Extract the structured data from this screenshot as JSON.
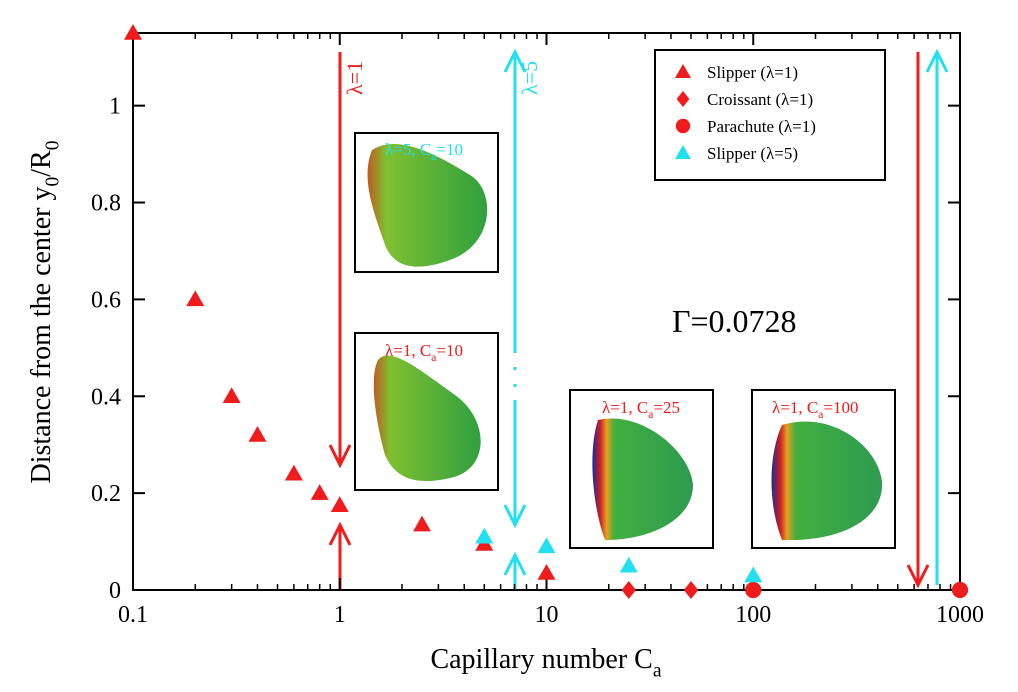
{
  "chart_data": {
    "type": "scatter",
    "x_label": [
      {
        "text": "Capillary number C"
      },
      {
        "text": "a",
        "sub": true
      }
    ],
    "y_label": [
      {
        "text": "Distance from the center y"
      },
      {
        "text": "0",
        "sub": true
      },
      {
        "text": "/R"
      },
      {
        "text": "0",
        "sub": true
      }
    ],
    "log_x": true,
    "xlim": [
      0.1,
      1000
    ],
    "xticks": [
      0.1,
      1,
      10,
      100,
      1000
    ],
    "ylim": [
      0,
      1.15
    ],
    "yticks": [
      0,
      0.2,
      0.4,
      0.6,
      0.8,
      1
    ],
    "legend": "upper right",
    "series": [
      {
        "name": "Slipper (λ=1)",
        "color": "#ee1c1c",
        "marker": "triangle",
        "x": [
          0.1,
          0.2,
          0.3,
          0.4,
          0.6,
          0.8,
          1,
          2.5,
          5,
          10
        ],
        "values": [
          1.15,
          0.6,
          0.4,
          0.32,
          0.24,
          0.2,
          0.175,
          0.135,
          0.095,
          0.035
        ]
      },
      {
        "name": "Croissant (λ=1)",
        "color": "#ee1c1c",
        "marker": "diamond",
        "x": [
          25,
          50
        ],
        "values": [
          0,
          0
        ]
      },
      {
        "name": "Parachute (λ=1)",
        "color": "#ee1c1c",
        "marker": "circle",
        "x": [
          100,
          1000
        ],
        "values": [
          0,
          0
        ]
      },
      {
        "name": "Slipper (λ=5)",
        "color": "#22e0ee",
        "marker": "triangle",
        "x": [
          5,
          10,
          25,
          100
        ],
        "values": [
          0.11,
          0.09,
          0.05,
          0.03
        ]
      }
    ],
    "lambda_labels": [
      "λ=1",
      "λ=5"
    ],
    "gamma_label": "Γ=0.0728",
    "insets": [
      {
        "label": [
          {
            "text": "λ=5, C"
          },
          {
            "text": "a",
            "sub": true
          },
          {
            "text": "=10"
          }
        ]
      },
      {
        "label": [
          {
            "text": "λ=1, C"
          },
          {
            "text": "a",
            "sub": true
          },
          {
            "text": "=10"
          }
        ]
      },
      {
        "label": [
          {
            "text": "λ=1, C"
          },
          {
            "text": "a",
            "sub": true
          },
          {
            "text": "=25"
          }
        ]
      },
      {
        "label": [
          {
            "text": "λ=1, C"
          },
          {
            "text": "a",
            "sub": true
          },
          {
            "text": "=100"
          }
        ]
      }
    ]
  }
}
